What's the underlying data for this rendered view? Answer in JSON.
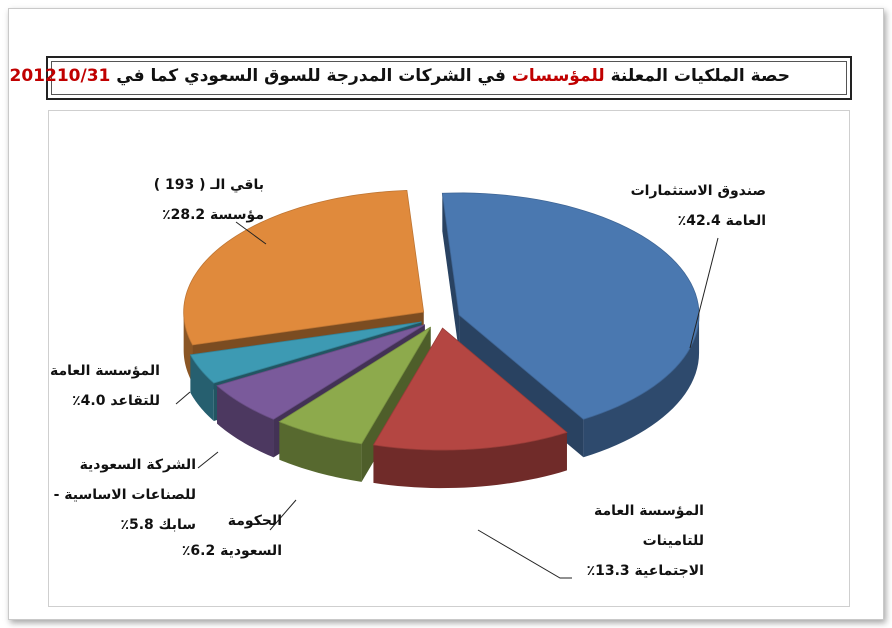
{
  "title": {
    "part1": "حصة الملكيات المعلنة",
    "part_red": "للمؤسسات",
    "part2": "في الشركات المدرجة للسوق السعودي كما في",
    "date": "201210/31"
  },
  "chart_data": {
    "type": "pie",
    "title": "حصة الملكيات المعلنة للمؤسسات في الشركات المدرجة للسوق السعودي كما في 201210/31",
    "three_d": true,
    "exploded": true,
    "unit": "%",
    "slices": [
      {
        "label": "صندوق الاستثمارات العامة",
        "value": 42.4,
        "color": "#4a78b0"
      },
      {
        "label": "المؤسسة العامة للتامينات الاجتماعية",
        "value": 13.3,
        "color": "#b44642"
      },
      {
        "label": "الحكومة السعودية",
        "value": 6.2,
        "color": "#8daa4c"
      },
      {
        "label": "الشركة السعودية للصناعات الاساسية - سابك",
        "value": 5.8,
        "color": "#7a5a9b"
      },
      {
        "label": "المؤسسة العامة للتقاعد",
        "value": 4.0,
        "color": "#3d9ab3"
      },
      {
        "label": "باقي الـ ( 193 ) مؤسسة",
        "value": 28.2,
        "color": "#e08a3c"
      }
    ]
  },
  "labels": [
    {
      "lines": [
        "صندوق الاستثمارات",
        "العامة 42.4٪"
      ]
    },
    {
      "lines": [
        "المؤسسة العامة",
        "للتامينات",
        "الاجتماعية 13.3٪"
      ]
    },
    {
      "lines": [
        "الحكومة",
        "السعودية 6.2٪"
      ]
    },
    {
      "lines": [
        "الشركة السعودية",
        "للصناعات الاساسية -",
        "سابك 5.8٪"
      ]
    },
    {
      "lines": [
        "المؤسسة العامة",
        "للتقاعد 4.0٪"
      ]
    },
    {
      "lines": [
        "باقي الـ ( 193 )",
        "مؤسسة 28.2٪"
      ]
    }
  ]
}
